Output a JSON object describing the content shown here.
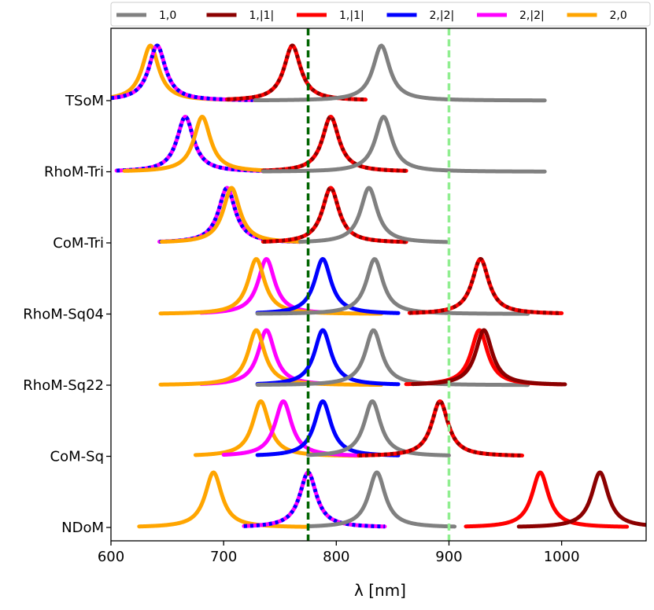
{
  "chart_data": {
    "type": "line",
    "title": "",
    "xlabel": "λ [nm]",
    "ylabel": "",
    "xlim": [
      600,
      1075
    ],
    "xticks": [
      600,
      700,
      800,
      900,
      1000
    ],
    "rows": [
      "TSoM",
      "RhoM-Tri",
      "CoM-Tri",
      "RhoM-Sq04",
      "RhoM-Sq22",
      "CoM-Sq",
      "NDoM"
    ],
    "legend": [
      {
        "label": "1,0",
        "color": "#808080"
      },
      {
        "label": "1,|1|",
        "color": "#8b0000"
      },
      {
        "label": "1,|1|",
        "color": "#ff0000"
      },
      {
        "label": "2,|2|",
        "color": "#0000ff"
      },
      {
        "label": "2,|2|",
        "color": "#ff00ff"
      },
      {
        "label": "2,0",
        "color": "#ffa500"
      }
    ],
    "vlines": [
      {
        "x": 775,
        "color": "#006400",
        "style": "dashed"
      },
      {
        "x": 900,
        "color": "#90ee90",
        "style": "dashed"
      }
    ],
    "series": [
      {
        "row": "TSoM",
        "name": "2,0",
        "color": "#ffa500",
        "center": 635,
        "start": 600,
        "end": 728
      },
      {
        "row": "TSoM",
        "name": "2,|2| magenta",
        "color": "#ff00ff",
        "center": 641,
        "start": 600,
        "end": 726
      },
      {
        "row": "TSoM",
        "name": "2,|2| blue",
        "color": "#0000ff",
        "center": 641,
        "start": 600,
        "end": 726,
        "dashed": true
      },
      {
        "row": "TSoM",
        "name": "1,|1| red",
        "color": "#ff0000",
        "center": 761,
        "start": 703,
        "end": 826
      },
      {
        "row": "TSoM",
        "name": "1,|1| darkred",
        "color": "#8b0000",
        "center": 761,
        "start": 703,
        "end": 826,
        "dashed": true
      },
      {
        "row": "TSoM",
        "name": "1,0",
        "color": "#808080",
        "center": 840,
        "start": 728,
        "end": 985
      },
      {
        "row": "RhoM-Tri",
        "name": "2,|2| magenta",
        "color": "#ff00ff",
        "center": 666,
        "start": 605,
        "end": 735
      },
      {
        "row": "RhoM-Tri",
        "name": "2,|2| blue",
        "color": "#0000ff",
        "center": 666,
        "start": 605,
        "end": 735,
        "dashed": true
      },
      {
        "row": "RhoM-Tri",
        "name": "2,0",
        "color": "#ffa500",
        "center": 681,
        "start": 612,
        "end": 735
      },
      {
        "row": "RhoM-Tri",
        "name": "1,|1| red",
        "color": "#ff0000",
        "center": 795,
        "start": 735,
        "end": 862
      },
      {
        "row": "RhoM-Tri",
        "name": "1,|1| darkred",
        "color": "#8b0000",
        "center": 795,
        "start": 735,
        "end": 862,
        "dashed": true
      },
      {
        "row": "RhoM-Tri",
        "name": "1,0",
        "color": "#808080",
        "center": 842,
        "start": 735,
        "end": 985
      },
      {
        "row": "CoM-Tri",
        "name": "2,|2| magenta",
        "color": "#ff00ff",
        "center": 703,
        "start": 643,
        "end": 768
      },
      {
        "row": "CoM-Tri",
        "name": "2,|2| blue",
        "color": "#0000ff",
        "center": 703,
        "start": 643,
        "end": 768,
        "dashed": true
      },
      {
        "row": "CoM-Tri",
        "name": "2,0",
        "color": "#ffa500",
        "center": 707,
        "start": 645,
        "end": 770
      },
      {
        "row": "CoM-Tri",
        "name": "1,|1| red",
        "color": "#ff0000",
        "center": 795,
        "start": 735,
        "end": 862
      },
      {
        "row": "CoM-Tri",
        "name": "1,|1| darkred",
        "color": "#8b0000",
        "center": 795,
        "start": 735,
        "end": 862,
        "dashed": true
      },
      {
        "row": "CoM-Tri",
        "name": "1,0",
        "color": "#808080",
        "center": 829,
        "start": 768,
        "end": 898
      },
      {
        "row": "RhoM-Sq04",
        "name": "2,|2| magenta",
        "color": "#ff00ff",
        "center": 738,
        "start": 680,
        "end": 805
      },
      {
        "row": "RhoM-Sq04",
        "name": "2,0",
        "color": "#ffa500",
        "center": 729,
        "start": 644,
        "end": 840
      },
      {
        "row": "RhoM-Sq04",
        "name": "2,|2| blue",
        "color": "#0000ff",
        "center": 788,
        "start": 730,
        "end": 855
      },
      {
        "row": "RhoM-Sq04",
        "name": "1,0",
        "color": "#808080",
        "center": 834,
        "start": 730,
        "end": 970
      },
      {
        "row": "RhoM-Sq04",
        "name": "1,|1| red",
        "color": "#ff0000",
        "center": 928,
        "start": 865,
        "end": 1000
      },
      {
        "row": "RhoM-Sq04",
        "name": "1,|1| darkred",
        "color": "#8b0000",
        "center": 928,
        "start": 865,
        "end": 1000,
        "dashed": true
      },
      {
        "row": "RhoM-Sq22",
        "name": "2,|2| magenta",
        "color": "#ff00ff",
        "center": 738,
        "start": 680,
        "end": 805
      },
      {
        "row": "RhoM-Sq22",
        "name": "2,0",
        "color": "#ffa500",
        "center": 729,
        "start": 644,
        "end": 840
      },
      {
        "row": "RhoM-Sq22",
        "name": "2,|2| blue",
        "color": "#0000ff",
        "center": 788,
        "start": 730,
        "end": 855
      },
      {
        "row": "RhoM-Sq22",
        "name": "1,0",
        "color": "#808080",
        "center": 833,
        "start": 730,
        "end": 970
      },
      {
        "row": "RhoM-Sq22",
        "name": "1,|1| red",
        "color": "#ff0000",
        "center": 927,
        "start": 862,
        "end": 1000
      },
      {
        "row": "RhoM-Sq22",
        "name": "1,|1| darkred",
        "color": "#8b0000",
        "center": 931,
        "start": 868,
        "end": 1003
      },
      {
        "row": "CoM-Sq",
        "name": "2,0",
        "color": "#ffa500",
        "center": 733,
        "start": 675,
        "end": 820
      },
      {
        "row": "CoM-Sq",
        "name": "2,|2| magenta",
        "color": "#ff00ff",
        "center": 753,
        "start": 700,
        "end": 820
      },
      {
        "row": "CoM-Sq",
        "name": "2,|2| blue",
        "color": "#0000ff",
        "center": 788,
        "start": 730,
        "end": 855
      },
      {
        "row": "CoM-Sq",
        "name": "1,0",
        "color": "#808080",
        "center": 832,
        "start": 775,
        "end": 900
      },
      {
        "row": "CoM-Sq",
        "name": "1,|1| red",
        "color": "#ff0000",
        "center": 892,
        "start": 820,
        "end": 965
      },
      {
        "row": "CoM-Sq",
        "name": "1,|1| darkred",
        "color": "#8b0000",
        "center": 892,
        "start": 820,
        "end": 965,
        "dashed": true
      },
      {
        "row": "NDoM",
        "name": "2,0",
        "color": "#ffa500",
        "center": 691,
        "start": 625,
        "end": 775
      },
      {
        "row": "NDoM",
        "name": "2,|2| magenta",
        "color": "#ff00ff",
        "center": 775,
        "start": 718,
        "end": 843
      },
      {
        "row": "NDoM",
        "name": "2,|2| blue",
        "color": "#0000ff",
        "center": 775,
        "start": 718,
        "end": 843,
        "dashed": true
      },
      {
        "row": "NDoM",
        "name": "1,0",
        "color": "#808080",
        "center": 836,
        "start": 776,
        "end": 905
      },
      {
        "row": "NDoM",
        "name": "1,|1| red",
        "color": "#ff0000",
        "center": 981,
        "start": 915,
        "end": 1058
      },
      {
        "row": "NDoM",
        "name": "1,|1| darkred",
        "color": "#8b0000",
        "center": 1034,
        "start": 962,
        "end": 1075
      }
    ]
  }
}
